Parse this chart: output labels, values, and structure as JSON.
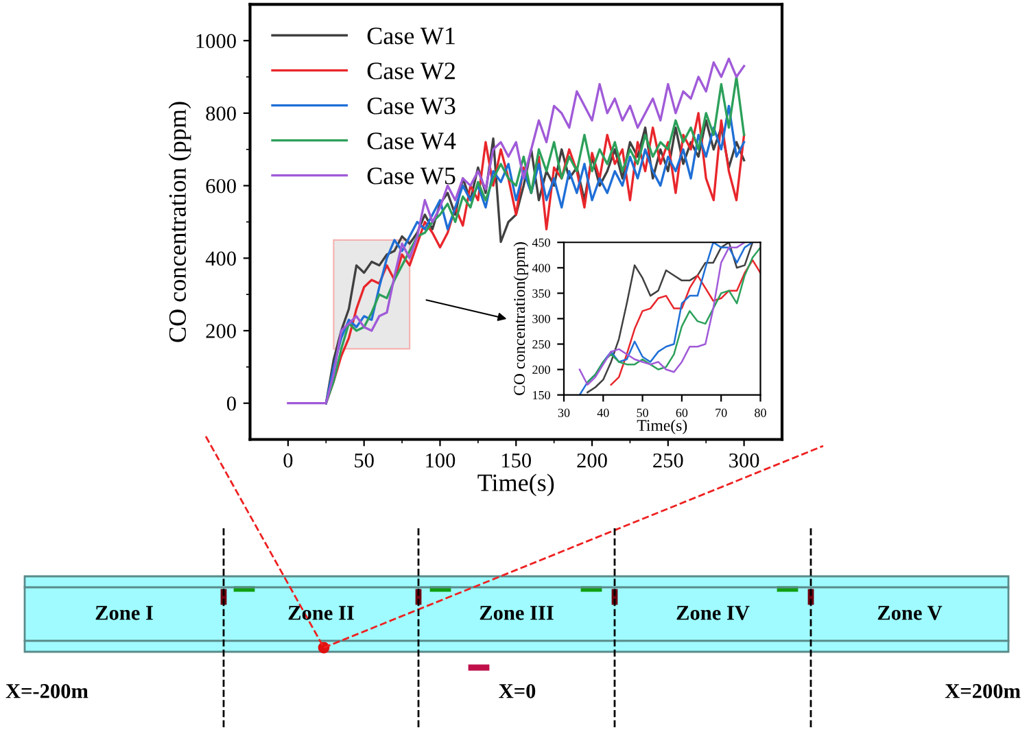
{
  "chart_data": [
    {
      "type": "line",
      "xlabel": "Time(s)",
      "ylabel": "CO concentration (ppm)",
      "xlim": [
        -25,
        325
      ],
      "xticks": [
        0,
        50,
        100,
        150,
        200,
        250,
        300
      ],
      "ylim": [
        -100,
        1100
      ],
      "yticks": [
        0,
        200,
        400,
        600,
        800,
        1000
      ],
      "grid": false,
      "legend": "top left",
      "marker": "none",
      "line_style": "solid",
      "x": [
        0,
        5,
        10,
        15,
        20,
        25,
        30,
        35,
        40,
        45,
        50,
        55,
        60,
        65,
        70,
        75,
        80,
        85,
        90,
        95,
        100,
        105,
        110,
        115,
        120,
        125,
        130,
        135,
        140,
        145,
        150,
        155,
        160,
        165,
        170,
        175,
        180,
        185,
        190,
        195,
        200,
        205,
        210,
        215,
        220,
        225,
        230,
        235,
        240,
        245,
        250,
        255,
        260,
        265,
        270,
        275,
        280,
        285,
        290,
        295,
        300
      ],
      "series": [
        {
          "name": "Case W1",
          "color": "#404040",
          "values": [
            null,
            null,
            null,
            null,
            null,
            0,
            120,
            200,
            260,
            380,
            360,
            390,
            380,
            410,
            420,
            460,
            440,
            470,
            520,
            480,
            550,
            580,
            520,
            620,
            560,
            650,
            580,
            730,
            445,
            500,
            520,
            600,
            700,
            560,
            640,
            600,
            700,
            620,
            650,
            560,
            680,
            600,
            640,
            700,
            620,
            720,
            680,
            760,
            620,
            700,
            640,
            760,
            660,
            720,
            680,
            780,
            700,
            760,
            650,
            720,
            670
          ]
        },
        {
          "name": "Case W2",
          "color": "#e8262b",
          "values": [
            null,
            null,
            null,
            null,
            null,
            0,
            60,
            130,
            180,
            260,
            320,
            340,
            330,
            380,
            340,
            410,
            380,
            440,
            500,
            470,
            430,
            470,
            540,
            490,
            600,
            560,
            720,
            600,
            700,
            620,
            520,
            650,
            580,
            680,
            480,
            650,
            620,
            700,
            640,
            540,
            690,
            620,
            740,
            660,
            700,
            560,
            720,
            640,
            760,
            660,
            720,
            580,
            740,
            700,
            800,
            620,
            560,
            780,
            640,
            560,
            740
          ]
        },
        {
          "name": "Case W3",
          "color": "#1f6fd6",
          "values": [
            null,
            null,
            null,
            null,
            null,
            0,
            100,
            180,
            230,
            210,
            240,
            230,
            320,
            400,
            450,
            420,
            460,
            500,
            480,
            520,
            560,
            480,
            540,
            600,
            560,
            600,
            540,
            640,
            610,
            660,
            560,
            640,
            580,
            660,
            560,
            620,
            540,
            640,
            580,
            660,
            560,
            620,
            580,
            640,
            600,
            680,
            620,
            700,
            640,
            600,
            680,
            640,
            700,
            620,
            740,
            680,
            760,
            700,
            820,
            680,
            720
          ]
        },
        {
          "name": "Case W4",
          "color": "#2ca05a",
          "values": [
            null,
            null,
            null,
            null,
            null,
            0,
            60,
            150,
            220,
            200,
            210,
            250,
            300,
            290,
            340,
            380,
            420,
            460,
            470,
            500,
            520,
            550,
            500,
            570,
            540,
            610,
            560,
            620,
            660,
            620,
            600,
            680,
            580,
            700,
            640,
            720,
            620,
            680,
            640,
            740,
            640,
            700,
            660,
            720,
            640,
            700,
            660,
            740,
            680,
            720,
            700,
            780,
            720,
            760,
            700,
            800,
            740,
            880,
            760,
            900,
            740
          ]
        },
        {
          "name": "Case W5",
          "color": "#a05ad8",
          "values": [
            0,
            0,
            0,
            0,
            0,
            0,
            80,
            200,
            220,
            240,
            210,
            200,
            240,
            250,
            350,
            440,
            400,
            460,
            560,
            500,
            540,
            600,
            560,
            620,
            600,
            640,
            590,
            700,
            720,
            680,
            720,
            620,
            700,
            780,
            720,
            820,
            800,
            760,
            860,
            820,
            780,
            880,
            800,
            840,
            780,
            820,
            760,
            800,
            840,
            780,
            880,
            800,
            860,
            840,
            900,
            860,
            940,
            900,
            950,
            900,
            930
          ]
        }
      ]
    },
    {
      "type": "line",
      "xlabel": "Time(s)",
      "ylabel": "CO concentration(ppm)",
      "xlim": [
        30,
        80
      ],
      "xticks": [
        30,
        40,
        50,
        60,
        70,
        80
      ],
      "ylim": [
        150,
        450
      ],
      "yticks": [
        150,
        200,
        250,
        300,
        350,
        400,
        450
      ],
      "grid": false,
      "marker": "none",
      "line_style": "solid",
      "x": [
        34,
        36,
        38,
        40,
        42,
        44,
        46,
        48,
        50,
        52,
        54,
        56,
        58,
        60,
        62,
        64,
        66,
        68,
        70,
        72,
        74,
        76,
        78,
        80
      ],
      "series": [
        {
          "color": "#404040",
          "values": [
            null,
            155,
            165,
            180,
            215,
            260,
            330,
            405,
            380,
            345,
            355,
            395,
            385,
            375,
            375,
            385,
            410,
            410,
            440,
            450,
            400,
            405,
            450,
            null
          ]
        },
        {
          "color": "#e8262b",
          "values": [
            null,
            null,
            null,
            null,
            170,
            185,
            230,
            280,
            315,
            320,
            340,
            345,
            320,
            320,
            360,
            385,
            360,
            335,
            340,
            355,
            355,
            390,
            415,
            390
          ]
        },
        {
          "color": "#1f6fd6",
          "values": [
            150,
            175,
            190,
            215,
            235,
            215,
            220,
            255,
            225,
            215,
            235,
            245,
            250,
            330,
            345,
            345,
            400,
            450,
            440,
            440,
            410,
            440,
            450,
            null
          ]
        },
        {
          "color": "#2ca05a",
          "values": [
            null,
            175,
            190,
            215,
            230,
            215,
            210,
            210,
            220,
            210,
            200,
            205,
            230,
            285,
            315,
            295,
            290,
            320,
            350,
            355,
            330,
            385,
            420,
            440
          ]
        },
        {
          "color": "#a05ad8",
          "values": [
            200,
            170,
            185,
            210,
            235,
            240,
            230,
            220,
            215,
            210,
            215,
            200,
            195,
            215,
            245,
            245,
            250,
            320,
            410,
            440,
            440,
            450,
            null,
            null
          ]
        }
      ]
    },
    {
      "type": "other",
      "annotations": [
        "Zone I",
        "Zone II",
        "Zone III",
        "Zone IV",
        "Zone V",
        "X=-200m",
        "X=0",
        "X=200m"
      ]
    }
  ]
}
